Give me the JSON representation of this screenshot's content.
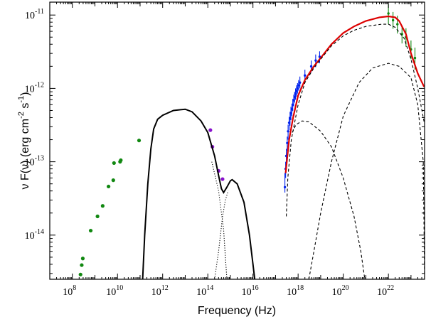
{
  "chart_data": {
    "type": "scatter",
    "title": "",
    "xlabel": "Frequency  (Hz)",
    "ylabel": {
      "prefix": "ν F(ν)  (erg cm",
      "sup1": "-2",
      "mid": " s",
      "sup2": "-1",
      "suffix": ")"
    },
    "x_scale": "log",
    "y_scale": "log",
    "xlim": [
      10000000.0,
      4e+23
    ],
    "ylim": [
      2.5e-15,
      1.5e-11
    ],
    "x_ticks": [
      {
        "base": "10",
        "exp": "8",
        "value": 100000000.0
      },
      {
        "base": "10",
        "exp": "10",
        "value": 10000000000.0
      },
      {
        "base": "10",
        "exp": "12",
        "value": 1000000000000.0
      },
      {
        "base": "10",
        "exp": "14",
        "value": 100000000000000.0
      },
      {
        "base": "10",
        "exp": "16",
        "value": 1e+16
      },
      {
        "base": "10",
        "exp": "18",
        "value": 1e+18
      },
      {
        "base": "10",
        "exp": "20",
        "value": 1e+20
      },
      {
        "base": "10",
        "exp": "22",
        "value": 1e+22
      }
    ],
    "y_ticks": [
      {
        "base": "10",
        "exp": "-14",
        "value": 1e-14
      },
      {
        "base": "10",
        "exp": "-13",
        "value": 1e-13
      },
      {
        "base": "10",
        "exp": "-12",
        "value": 1e-12
      },
      {
        "base": "10",
        "exp": "-11",
        "value": 1e-11
      }
    ],
    "grid": false,
    "legend": "none",
    "colors": {
      "radio": "#118811",
      "optical": "#8811cc",
      "xray": "#0022ee",
      "gamma": "#118811",
      "total_model": "#dd0000",
      "model": "#000000"
    },
    "series": [
      {
        "kind": "points",
        "color_key": "radio",
        "points": [
          [
            230000000.0,
            2.9e-15
          ],
          [
            260000000.0,
            3.9e-15
          ],
          [
            290000000.0,
            4.8e-15
          ],
          [
            650000000.0,
            1.15e-14
          ],
          [
            1300000000.0,
            1.8e-14
          ],
          [
            2200000000.0,
            2.5e-14
          ],
          [
            4000000000.0,
            4.6e-14
          ],
          [
            6500000000.0,
            5.6e-14
          ],
          [
            7000000000.0,
            9.6e-14
          ],
          [
            13000000000.0,
            1e-13
          ],
          [
            14000000000.0,
            1.05e-13
          ],
          [
            90000000000.0,
            1.95e-13
          ]
        ]
      },
      {
        "kind": "points",
        "color_key": "optical",
        "points": [
          [
            130000000000000.0,
            2.7e-13
          ],
          [
            160000000000000.0,
            1.6e-13
          ],
          [
            300000000000000.0,
            7.5e-14
          ],
          [
            450000000000000.0,
            5.8e-14
          ]
        ]
      },
      {
        "kind": "points_with_errors",
        "color_key": "xray",
        "points": [
          [
            2.6e+17,
            4.5e-14,
            7e-14,
            3.8e-14
          ],
          [
            2.8e+17,
            8e-14,
            1e-13,
            6e-14
          ],
          [
            3e+17,
            1.2e-13,
            1.5e-13,
            9e-14
          ],
          [
            3.3e+17,
            1.8e-13,
            2.2e-13,
            1.4e-13
          ],
          [
            3.6e+17,
            2.6e-13,
            3.2e-13,
            2e-13
          ],
          [
            4e+17,
            3.4e-13,
            4.1e-13,
            2.7e-13
          ],
          [
            4.4e+17,
            3.9e-13,
            4.8e-13,
            3.1e-13
          ],
          [
            4.8e+17,
            4.6e-13,
            5.6e-13,
            3.7e-13
          ],
          [
            5.3e+17,
            5.2e-13,
            6.2e-13,
            4.2e-13
          ],
          [
            5.8e+17,
            6e-13,
            7.2e-13,
            4.9e-13
          ],
          [
            6.4e+17,
            6.9e-13,
            8.2e-13,
            5.7e-13
          ],
          [
            7e+17,
            7.6e-13,
            9e-13,
            6.4e-13
          ],
          [
            7.7e+17,
            8.4e-13,
            1e-12,
            7e-13
          ],
          [
            8.5e+17,
            9.2e-13,
            1.1e-12,
            7.7e-13
          ],
          [
            9.4e+17,
            1e-12,
            1.18e-12,
            8.5e-13
          ],
          [
            1.05e+18,
            1.1e-12,
            1.3e-12,
            9.3e-13
          ],
          [
            1.2e+18,
            1.2e-12,
            1.45e-12,
            1e-12
          ],
          [
            2e+18,
            1.5e-12,
            1.8e-12,
            1.25e-12
          ],
          [
            3.8e+18,
            2e-12,
            2.4e-12,
            1.65e-12
          ],
          [
            6e+18,
            2.4e-12,
            2.9e-12,
            1.95e-12
          ],
          [
            9e+18,
            2.7e-12,
            3.2e-12,
            2.2e-12
          ]
        ]
      },
      {
        "kind": "points_with_errors",
        "color_key": "gamma",
        "points": [
          [
            1e+22,
            1.05e-11,
            1.4e-11,
            7.5e-12
          ],
          [
            1.6e+22,
            8.5e-12,
            1.1e-11,
            6.5e-12
          ],
          [
            2.5e+22,
            7.5e-12,
            9.8e-12,
            5.6e-12
          ],
          [
            4e+22,
            5.5e-12,
            7e-12,
            4.1e-12
          ],
          [
            6e+22,
            5e-12,
            6.6e-12,
            3.7e-12
          ],
          [
            1e+23,
            3.4e-12,
            4.5e-12,
            2.5e-12
          ],
          [
            1.5e+23,
            2.6e-12,
            3.6e-12,
            1.8e-12
          ]
        ]
      },
      {
        "kind": "line",
        "color_key": "model",
        "style": "solid",
        "points": [
          [
            130000000000.0,
            2.5e-15
          ],
          [
            160000000000.0,
            1e-14
          ],
          [
            220000000000.0,
            5e-14
          ],
          [
            300000000000.0,
            1.5e-13
          ],
          [
            400000000000.0,
            2.8e-13
          ],
          [
            600000000000.0,
            3.8e-13
          ],
          [
            1000000000000.0,
            4.3e-13
          ],
          [
            3000000000000.0,
            5e-13
          ],
          [
            10000000000000.0,
            5.2e-13
          ],
          [
            20000000000000.0,
            4.8e-13
          ],
          [
            50000000000000.0,
            3.6e-13
          ],
          [
            100000000000000.0,
            2.5e-13
          ],
          [
            200000000000000.0,
            1.2e-13
          ],
          [
            300000000000000.0,
            6.5e-14
          ],
          [
            400000000000000.0,
            4.3e-14
          ],
          [
            500000000000000.0,
            3.8e-14
          ],
          [
            700000000000000.0,
            4.5e-14
          ],
          [
            1000000000000000.0,
            5.5e-14
          ],
          [
            1200000000000000.0,
            5.7e-14
          ],
          [
            2000000000000000.0,
            5e-14
          ],
          [
            4000000000000000.0,
            2.8e-14
          ],
          [
            7000000000000000.0,
            1e-14
          ],
          [
            1e+16,
            4e-15
          ],
          [
            1.2e+16,
            2.5e-15
          ]
        ]
      },
      {
        "kind": "line",
        "color_key": "model",
        "style": "dotted",
        "points": [
          [
            200000000000000.0,
            2.5e-15
          ],
          [
            300000000000000.0,
            6e-15
          ],
          [
            450000000000000.0,
            1.8e-14
          ],
          [
            600000000000000.0,
            3e-14
          ],
          [
            800000000000000.0,
            4e-14
          ]
        ]
      },
      {
        "kind": "line",
        "color_key": "model",
        "style": "dotted",
        "points": [
          [
            150000000000000.0,
            1e-13
          ],
          [
            300000000000000.0,
            4e-14
          ],
          [
            500000000000000.0,
            1.2e-14
          ],
          [
            600000000000000.0,
            5e-15
          ],
          [
            700000000000000.0,
            2.5e-15
          ]
        ]
      },
      {
        "kind": "line",
        "color_key": "total_model",
        "style": "solid",
        "points": [
          [
            2.8e+17,
            7e-14
          ],
          [
            4e+17,
            2e-13
          ],
          [
            6e+17,
            4e-13
          ],
          [
            1e+18,
            8e-13
          ],
          [
            2e+18,
            1.3e-12
          ],
          [
            5e+18,
            2e-12
          ],
          [
            1e+19,
            2.6e-12
          ],
          [
            3e+19,
            4e-12
          ],
          [
            1e+20,
            5.7e-12
          ],
          [
            3e+20,
            7e-12
          ],
          [
            1e+21,
            8.3e-12
          ],
          [
            4e+21,
            9.3e-12
          ],
          [
            1e+22,
            9.6e-12
          ],
          [
            2e+22,
            9.3e-12
          ],
          [
            3e+22,
            8.3e-12
          ],
          [
            6e+22,
            5.5e-12
          ],
          [
            1e+23,
            3e-12
          ],
          [
            2e+23,
            1.6e-12
          ],
          [
            3.8e+23,
            1.05e-12
          ]
        ]
      },
      {
        "kind": "line",
        "color_key": "model",
        "style": "dashed",
        "points": [
          [
            3e+17,
            1.8e-14
          ],
          [
            3.5e+17,
            6e-14
          ],
          [
            5e+17,
            2e-13
          ],
          [
            1e+18,
            6e-13
          ],
          [
            2e+18,
            1.2e-12
          ],
          [
            5e+18,
            1.9e-12
          ],
          [
            1e+19,
            2.5e-12
          ],
          [
            3e+19,
            3.8e-12
          ],
          [
            1e+20,
            5.2e-12
          ],
          [
            3e+20,
            6.2e-12
          ],
          [
            1e+21,
            7e-12
          ],
          [
            5e+21,
            7.5e-12
          ],
          [
            1e+22,
            7.5e-12
          ],
          [
            2e+22,
            6.8e-12
          ],
          [
            5e+22,
            4.8e-12
          ],
          [
            1e+23,
            2.5e-12
          ],
          [
            2e+23,
            1e-12
          ],
          [
            3.8e+23,
            3.5e-13
          ]
        ]
      },
      {
        "kind": "line",
        "color_key": "model",
        "style": "dashed",
        "points": [
          [
            5.5e+17,
            2.5e-13
          ],
          [
            8e+17,
            3.2e-13
          ],
          [
            1.5e+18,
            3.6e-13
          ],
          [
            3e+18,
            3.5e-13
          ],
          [
            1e+19,
            2.6e-13
          ],
          [
            3e+19,
            1.6e-13
          ],
          [
            1e+20,
            6e-14
          ],
          [
            3e+20,
            1.8e-14
          ],
          [
            6e+20,
            6e-15
          ],
          [
            9e+20,
            2.5e-15
          ]
        ]
      },
      {
        "kind": "line",
        "color_key": "model",
        "style": "dashed",
        "points": [
          [
            3e+18,
            2.5e-15
          ],
          [
            5e+18,
            6e-15
          ],
          [
            1e+19,
            2e-14
          ],
          [
            3e+19,
            1e-13
          ],
          [
            1e+20,
            4.2e-13
          ],
          [
            5e+20,
            1.2e-12
          ],
          [
            2e+21,
            1.9e-12
          ],
          [
            1e+22,
            2.2e-12
          ],
          [
            3e+22,
            2e-12
          ],
          [
            1e+23,
            1.4e-12
          ],
          [
            2e+23,
            6e-13
          ],
          [
            3.5e+23,
            1e-13
          ],
          [
            4e+23,
            2.5e-15
          ]
        ]
      }
    ]
  }
}
